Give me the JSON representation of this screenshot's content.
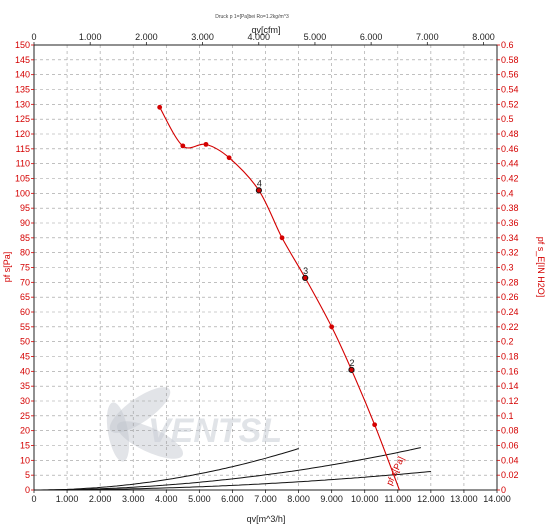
{
  "chart_data": {
    "type": "line",
    "title": "Druck p 1=[Pa]bei Ro=1.2kg/m^3",
    "x_bottom": {
      "label": "qv[m^3/h]",
      "range": [
        0,
        14000
      ],
      "ticks": [
        "0",
        "1.000",
        "2.000",
        "3.000",
        "4.000",
        "5.000",
        "6.000",
        "7.000",
        "8.000",
        "9.000",
        "10.000",
        "11.000",
        "12.000",
        "13.000",
        "14.000"
      ]
    },
    "x_top": {
      "label": "qv[cfm]",
      "range": [
        0,
        8240
      ],
      "ticks": [
        "0",
        "1.000",
        "2.000",
        "3.000",
        "4.000",
        "5.000",
        "6.000",
        "7.000",
        "8.000"
      ]
    },
    "y_left": {
      "label": "pf s[Pa]",
      "range": [
        0,
        150
      ],
      "ticks": [
        "0",
        "5",
        "10",
        "15",
        "20",
        "25",
        "30",
        "35",
        "40",
        "45",
        "50",
        "55",
        "60",
        "65",
        "70",
        "75",
        "80",
        "85",
        "90",
        "95",
        "100",
        "105",
        "110",
        "115",
        "120",
        "125",
        "130",
        "135",
        "140",
        "145",
        "150"
      ]
    },
    "y_right": {
      "label": "pf s_E[IN H2O]",
      "range": [
        0,
        0.6
      ],
      "ticks": [
        "0",
        "0.02",
        "0.04",
        "0.06",
        "0.08",
        "0.1",
        "0.12",
        "0.14",
        "0.16",
        "0.18",
        "0.2",
        "0.22",
        "0.24",
        "0.26",
        "0.28",
        "0.3",
        "0.32",
        "0.34",
        "0.36",
        "0.38",
        "0.4",
        "0.42",
        "0.44",
        "0.46",
        "0.48",
        "0.5",
        "0.52",
        "0.54",
        "0.56",
        "0.58",
        "0.6"
      ]
    },
    "grid": true,
    "fan_curve": {
      "name": "pf s[Pa]",
      "x": [
        3800,
        4500,
        5200,
        5900,
        6800,
        7500,
        8200,
        9000,
        9600,
        10300,
        11050
      ],
      "y": [
        129,
        116,
        116.5,
        112,
        101,
        85,
        71.5,
        55,
        40.5,
        22,
        0
      ]
    },
    "system_curves": [
      {
        "label": "4",
        "k": 0.002184,
        "x_max": 8000
      },
      {
        "label": "3",
        "k": 0.001044,
        "x_max": 11700
      },
      {
        "label": "2",
        "k": 0.000433,
        "x_max": 12000
      }
    ],
    "operating_points": [
      {
        "label": "4",
        "x": 6800,
        "y": 101
      },
      {
        "label": "3",
        "x": 8200,
        "y": 71.5
      },
      {
        "label": "2",
        "x": 9600,
        "y": 40.5
      }
    ],
    "end_label": "pf s[Pa]"
  }
}
